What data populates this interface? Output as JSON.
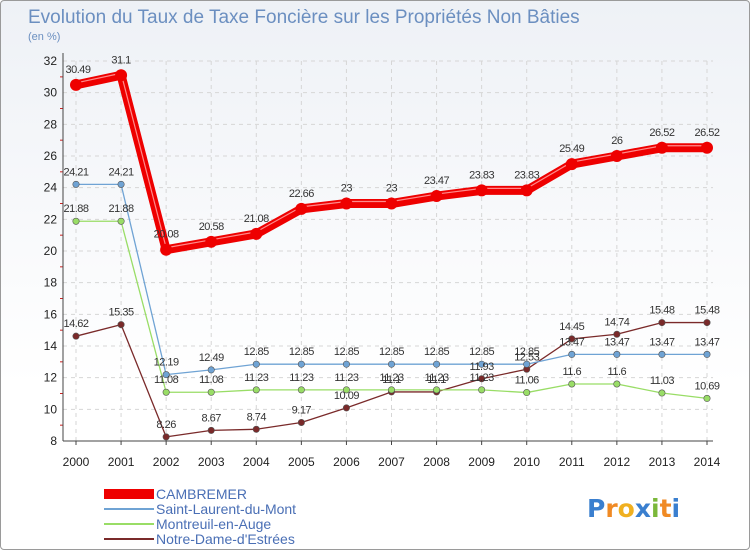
{
  "chart_data": {
    "type": "line",
    "title": "Evolution du Taux de Taxe Foncière sur les Propriétés Non Bâties",
    "subtitle": "(en %)",
    "categories": [
      "2000",
      "2001",
      "2002",
      "2003",
      "2004",
      "2005",
      "2006",
      "2007",
      "2008",
      "2009",
      "2010",
      "2011",
      "2012",
      "2013",
      "2014"
    ],
    "ylim": [
      8,
      32
    ],
    "yticks": [
      "8",
      "10",
      "12",
      "14",
      "16",
      "18",
      "20",
      "22",
      "24",
      "26",
      "28",
      "30",
      "32"
    ],
    "grid": true,
    "legend_position": "bottom-left",
    "series": [
      {
        "name": "CAMBREMER",
        "color": "#ee0000",
        "values": [
          30.49,
          31.1,
          20.08,
          20.58,
          21.08,
          22.66,
          23,
          23,
          23.47,
          23.83,
          23.83,
          25.49,
          26,
          26.52,
          26.52
        ],
        "labels": [
          "30.49",
          "31.1",
          "20.08",
          "20.58",
          "21.08",
          "22.66",
          "23",
          "23",
          "23.47",
          "23.83",
          "23.83",
          "25.49",
          "26",
          "26.52",
          "26.52"
        ]
      },
      {
        "name": "Saint-Laurent-du-Mont",
        "color": "#6fa3d4",
        "values": [
          24.21,
          24.21,
          12.19,
          12.49,
          12.85,
          12.85,
          12.85,
          12.85,
          12.85,
          12.85,
          12.85,
          13.47,
          13.47,
          13.47,
          13.47
        ],
        "labels": [
          "24.21",
          "24.21",
          "12.19",
          "12.49",
          "12.85",
          "12.85",
          "12.85",
          "12.85",
          "12.85",
          "12.85",
          "12.85",
          "13.47",
          "13.47",
          "13.47",
          "13.47"
        ]
      },
      {
        "name": "Montreuil-en-Auge",
        "color": "#99dd66",
        "values": [
          21.88,
          21.88,
          11.08,
          11.08,
          11.23,
          11.23,
          11.23,
          11.23,
          11.23,
          11.23,
          11.06,
          11.6,
          11.6,
          11.03,
          10.69
        ],
        "labels": [
          "21.88",
          "21.88",
          "11.08",
          "11.08",
          "11.23",
          "11.23",
          "11.23",
          "11.23",
          "11.23",
          "11.23",
          "11.06",
          "11.6",
          "11.6",
          "11.03",
          "10.69"
        ]
      },
      {
        "name": "Notre-Dame-d'Estrées",
        "color": "#7a2a2a",
        "values": [
          14.62,
          15.35,
          8.26,
          8.67,
          8.74,
          9.17,
          10.09,
          11.1,
          11.1,
          11.93,
          12.53,
          14.45,
          14.74,
          15.48,
          15.48
        ],
        "labels": [
          "14.62",
          "15.35",
          "8.26",
          "8.67",
          "8.74",
          "9.17",
          "10.09",
          "11.1",
          "11.1",
          "11.93",
          "12.53",
          "14.45",
          "14.74",
          "15.48",
          "15.48"
        ]
      }
    ]
  },
  "brand": {
    "letters": [
      "P",
      "r",
      "o",
      "x",
      "i",
      "t",
      "i"
    ],
    "colors": [
      "#3a7fcf",
      "#f08a24",
      "#f0b020",
      "#3a7fcf",
      "#7bb83a",
      "#f08a24",
      "#3a7fcf"
    ]
  }
}
